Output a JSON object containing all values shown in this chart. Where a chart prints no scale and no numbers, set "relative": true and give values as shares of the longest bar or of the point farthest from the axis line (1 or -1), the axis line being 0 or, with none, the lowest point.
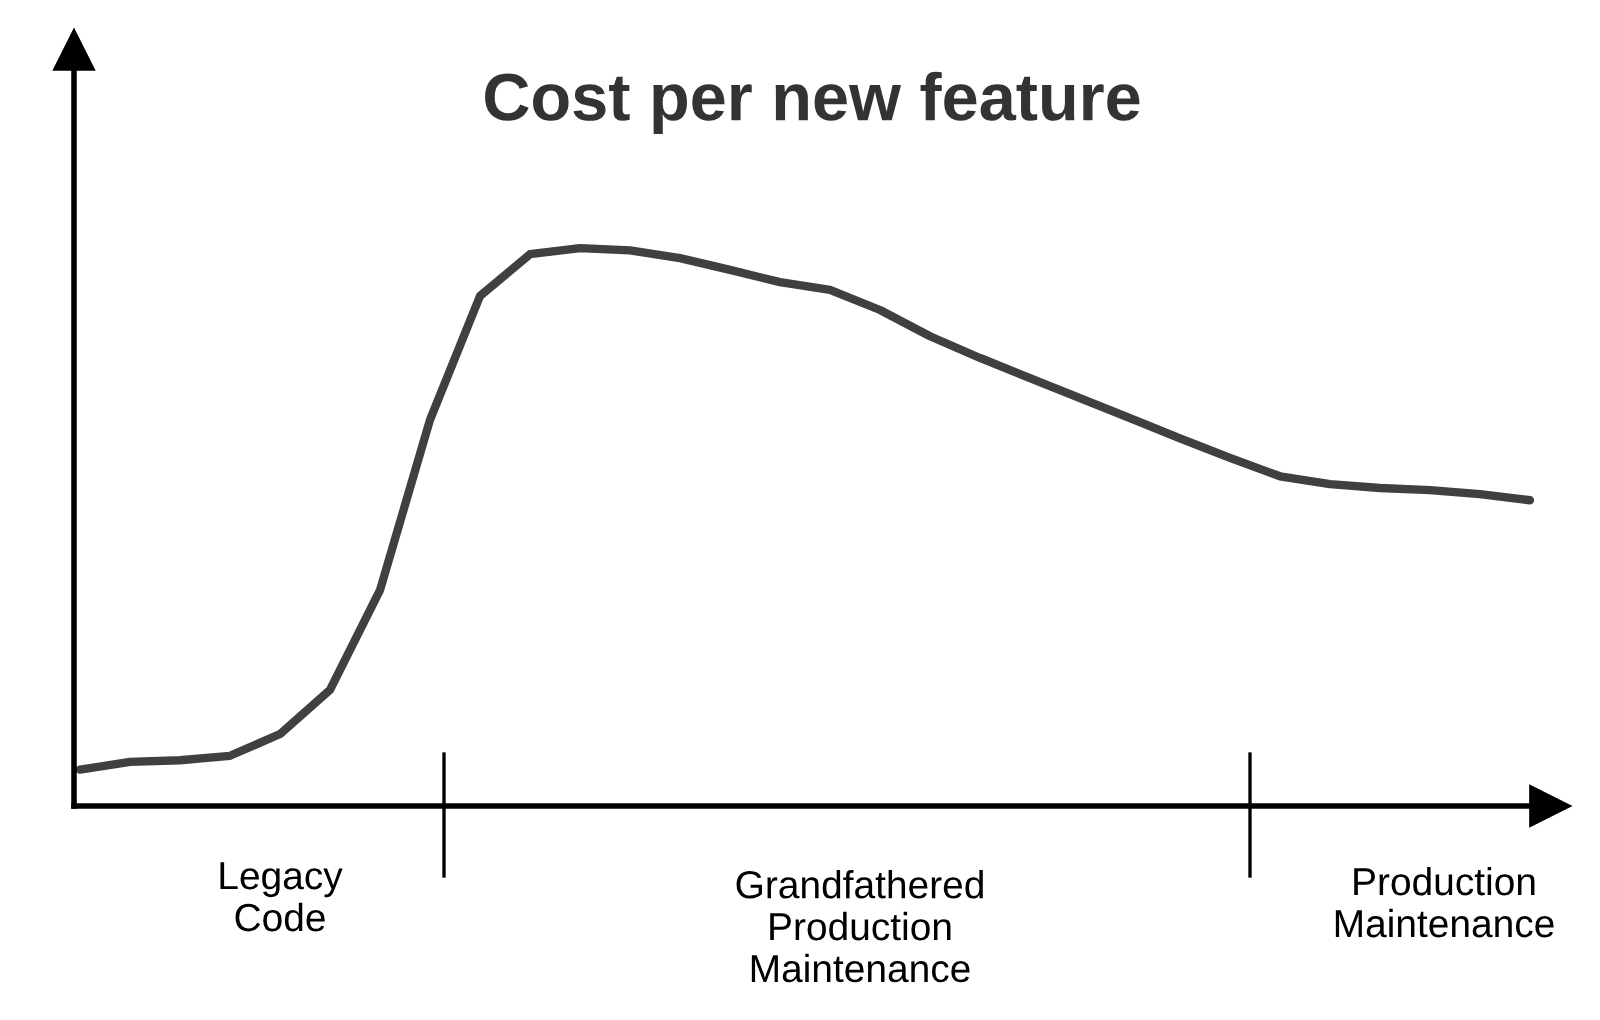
{
  "chart_data": {
    "type": "line",
    "title": "Cost per new feature",
    "relative": true,
    "categories": [
      null,
      null,
      null,
      null,
      null,
      null,
      null,
      null,
      null,
      null,
      null,
      null,
      null,
      null,
      null,
      null,
      null,
      null,
      null,
      null,
      null,
      null,
      null,
      null,
      null,
      null,
      null,
      null,
      null,
      null
    ],
    "series": [
      {
        "color": "#404040",
        "values": [
          0.065,
          0.079,
          0.082,
          0.09,
          0.129,
          0.208,
          0.387,
          0.692,
          0.914,
          0.989,
          1.0,
          0.996,
          0.982,
          0.961,
          0.939,
          0.925,
          0.889,
          0.842,
          0.803,
          0.767,
          0.731,
          0.695,
          0.659,
          0.624,
          0.591,
          0.577,
          0.57,
          0.566,
          0.559,
          0.548
        ]
      }
    ],
    "annotations": [
      "Legacy\nCode",
      "Grandfathered\nProduction\nMaintenance",
      "Production\nMaintenance"
    ],
    "legend": false,
    "marker": "none",
    "line_style": "solid"
  }
}
